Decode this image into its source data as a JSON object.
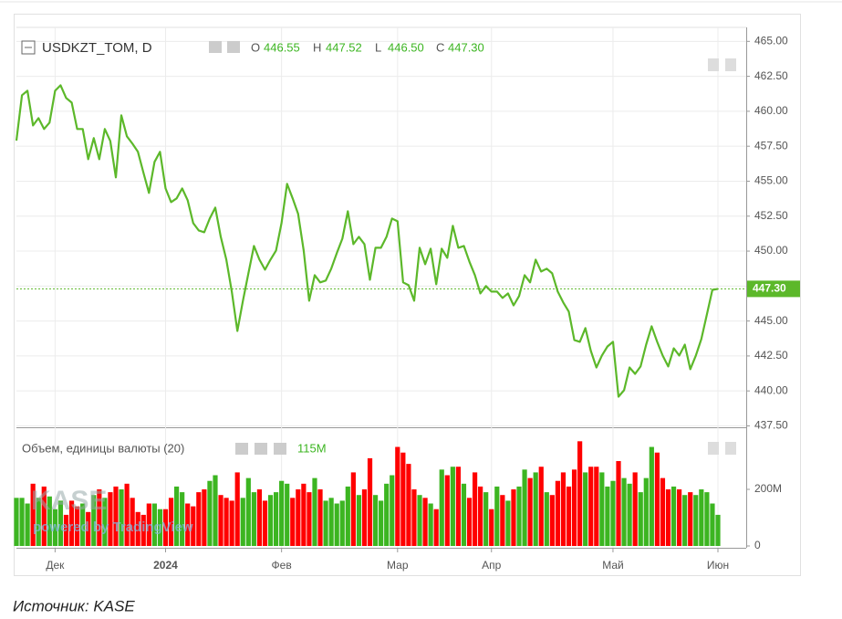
{
  "caption": "Источник: KASE",
  "watermark": {
    "logo": "KASE",
    "text": "powered by TradingView"
  },
  "chart_data": [
    {
      "type": "line",
      "title": "USDKZT_TOM, D",
      "color": "#5cb82a",
      "grid": true,
      "ohlc": {
        "labels": [
          "O",
          "H",
          "L",
          "C"
        ],
        "values": [
          446.55,
          447.52,
          446.5,
          447.3
        ],
        "value_labels": [
          "446.55",
          "447.52",
          "446.50",
          "447.30"
        ]
      },
      "categories": [
        null,
        null,
        null,
        null,
        null,
        null,
        null,
        "Дек",
        null,
        null,
        null,
        null,
        null,
        null,
        null,
        null,
        null,
        null,
        null,
        null,
        null,
        null,
        null,
        null,
        null,
        null,
        null,
        "2024",
        null,
        null,
        null,
        null,
        null,
        null,
        null,
        null,
        null,
        null,
        null,
        null,
        null,
        null,
        null,
        null,
        null,
        null,
        null,
        null,
        "Фев",
        null,
        null,
        null,
        null,
        null,
        null,
        null,
        null,
        null,
        null,
        null,
        null,
        null,
        null,
        null,
        null,
        null,
        null,
        null,
        null,
        "Мар",
        null,
        null,
        null,
        null,
        null,
        null,
        null,
        null,
        null,
        null,
        null,
        null,
        null,
        null,
        null,
        null,
        "Апр",
        null,
        null,
        null,
        null,
        null,
        null,
        null,
        null,
        null,
        null,
        null,
        null,
        null,
        null,
        null,
        null,
        null,
        null,
        null,
        null,
        null,
        "Май",
        null,
        null,
        null,
        null,
        null,
        null,
        null,
        null,
        null,
        null,
        null,
        null,
        null,
        null,
        null,
        null,
        null,
        null,
        "Июн"
      ],
      "values": [
        457.9,
        461.15,
        461.47,
        458.99,
        459.51,
        458.73,
        459.19,
        461.47,
        461.86,
        460.95,
        460.62,
        458.73,
        458.73,
        456.57,
        458.08,
        456.57,
        458.73,
        457.88,
        455.27,
        459.71,
        458.21,
        457.68,
        457.1,
        455.59,
        454.16,
        456.38,
        457.1,
        454.48,
        453.5,
        453.77,
        454.48,
        453.64,
        452.0,
        451.48,
        451.35,
        452.33,
        453.11,
        451.02,
        449.39,
        447.1,
        444.29,
        446.45,
        448.41,
        450.37,
        449.39,
        448.67,
        449.39,
        450.04,
        452.0,
        454.81,
        453.77,
        452.66,
        450.04,
        446.45,
        448.28,
        447.76,
        447.89,
        448.74,
        449.85,
        450.89,
        452.85,
        450.5,
        451.02,
        450.5,
        447.95,
        450.24,
        450.24,
        451.02,
        452.33,
        452.13,
        447.76,
        447.56,
        446.45,
        450.24,
        449.06,
        450.17,
        447.63,
        450.17,
        449.52,
        451.81,
        450.24,
        450.37,
        449.26,
        448.28,
        446.97,
        447.5,
        447.1,
        447.1,
        446.65,
        446.97,
        446.12,
        446.78,
        448.28,
        447.76,
        449.39,
        448.54,
        448.74,
        448.41,
        447.1,
        446.32,
        445.67,
        443.64,
        443.51,
        444.49,
        442.86,
        441.68,
        442.53,
        443.18,
        443.51,
        439.59,
        440.05,
        441.68,
        441.22,
        441.75,
        443.31,
        444.62,
        443.51,
        442.53,
        441.75,
        443.05,
        442.53,
        443.31,
        441.55,
        442.53,
        443.71,
        445.47,
        447.23,
        447.3
      ],
      "ylim": [
        437.4,
        466.0
      ],
      "yticks": [
        {
          "value": 437.5,
          "label": "437.50"
        },
        {
          "value": 440,
          "label": "440.00"
        },
        {
          "value": 442.5,
          "label": "442.50"
        },
        {
          "value": 445,
          "label": "445.00"
        },
        {
          "value": 447.5,
          "label": "447.50"
        },
        {
          "value": 450,
          "label": "450.00"
        },
        {
          "value": 452.5,
          "label": "452.50"
        },
        {
          "value": 455,
          "label": "455.00"
        },
        {
          "value": 457.5,
          "label": "457.50"
        },
        {
          "value": 460,
          "label": "460.00"
        },
        {
          "value": 462.5,
          "label": "462.50"
        },
        {
          "value": 465,
          "label": "465.00"
        }
      ]
    },
    {
      "type": "bar",
      "title": "Объем, единицы валюты (20)",
      "annotation": "115M",
      "up_color": "#3cb521",
      "down_color": "#ff0000",
      "values": [
        170,
        170,
        150,
        220,
        170,
        210,
        175,
        130,
        160,
        110,
        160,
        140,
        150,
        120,
        180,
        200,
        170,
        190,
        210,
        200,
        220,
        170,
        120,
        110,
        150,
        150,
        130,
        130,
        170,
        210,
        190,
        150,
        140,
        190,
        200,
        230,
        250,
        180,
        170,
        160,
        260,
        170,
        240,
        190,
        200,
        160,
        180,
        190,
        230,
        220,
        170,
        200,
        220,
        190,
        240,
        200,
        160,
        170,
        150,
        160,
        210,
        260,
        180,
        200,
        310,
        180,
        160,
        220,
        250,
        350,
        330,
        290,
        200,
        180,
        170,
        150,
        130,
        270,
        250,
        280,
        280,
        220,
        170,
        260,
        210,
        190,
        130,
        210,
        180,
        160,
        200,
        210,
        270,
        240,
        260,
        280,
        190,
        180,
        230,
        260,
        210,
        270,
        370,
        260,
        280,
        280,
        260,
        210,
        230,
        300,
        240,
        220,
        260,
        190,
        240,
        350,
        330,
        240,
        200,
        210,
        200,
        180,
        190,
        180,
        200,
        190,
        150,
        110
      ],
      "ylim": [
        0,
        413
      ],
      "yticks": [
        0,
        {
          "value": 200,
          "label": "200M"
        }
      ]
    }
  ]
}
